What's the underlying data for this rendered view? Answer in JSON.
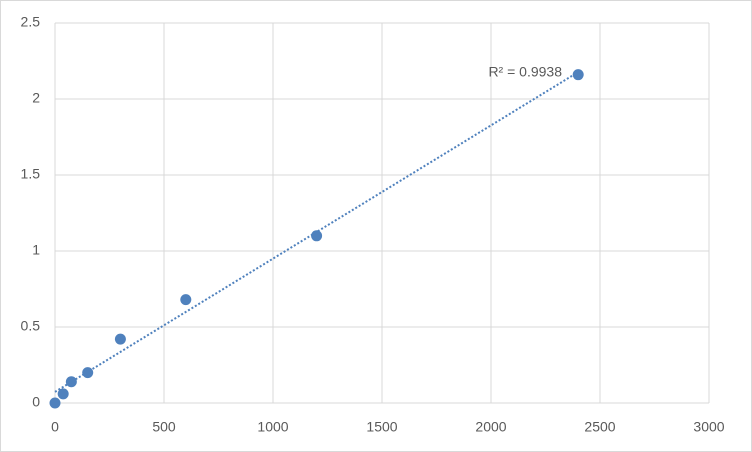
{
  "chart_data": {
    "type": "scatter",
    "annotation": "R² = 0.9938",
    "x": [
      0,
      37.5,
      75,
      150,
      300,
      600,
      1200,
      2400
    ],
    "series": [
      {
        "color": "#4f81bd",
        "values": [
          0,
          0.06,
          0.14,
          0.2,
          0.42,
          0.68,
          1.1,
          2.16
        ]
      }
    ],
    "trendline": "linear",
    "xlim": [
      0,
      3000
    ],
    "xticks": [
      0,
      500,
      1000,
      1500,
      2000,
      2500,
      3000
    ],
    "ylim": [
      0,
      2.5
    ],
    "yticks": [
      0,
      0.5,
      1,
      1.5,
      2,
      2.5
    ],
    "grid": true
  }
}
